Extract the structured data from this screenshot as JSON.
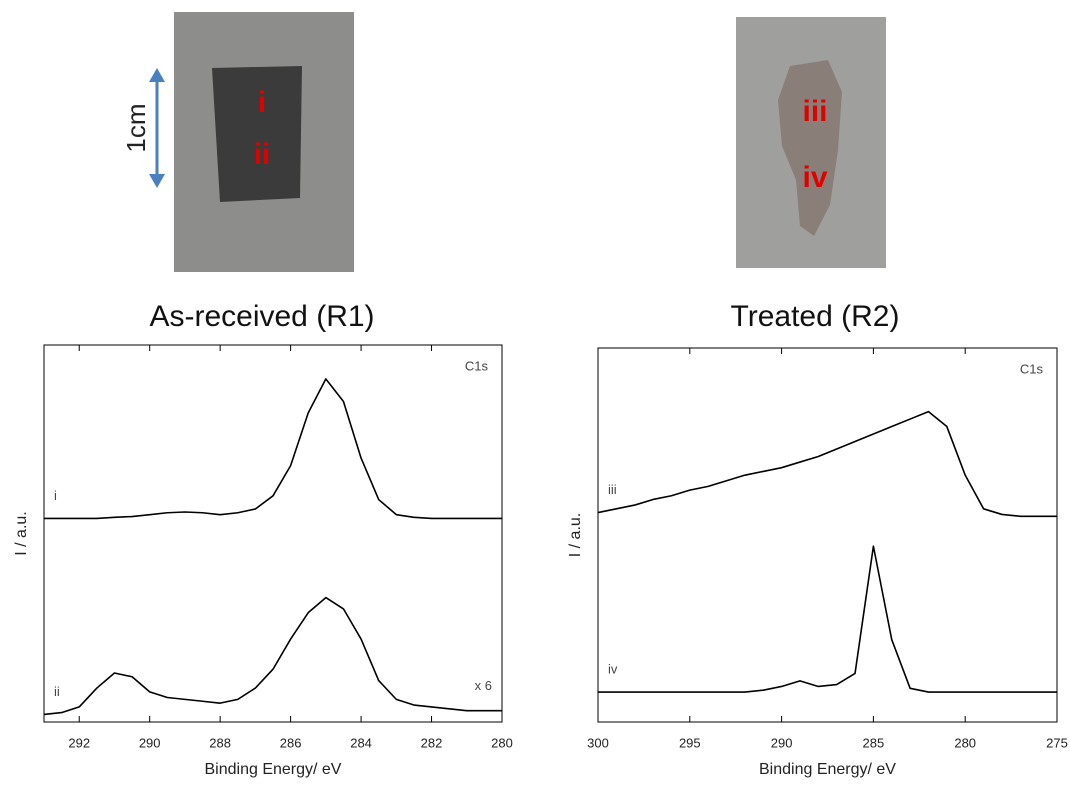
{
  "photos": [
    {
      "labels": [
        "i",
        "ii"
      ],
      "scale_label": "1cm",
      "caption": "As-received (R1)"
    },
    {
      "labels": [
        "iii",
        "iv"
      ],
      "caption": "Treated (R2)"
    }
  ],
  "chart_data": [
    {
      "type": "line",
      "corner_label": "C1s",
      "xlabel": "Binding Energy/ eV",
      "ylabel": "I / a.u.",
      "xlim": [
        293,
        280
      ],
      "xticks": [
        292,
        290,
        288,
        286,
        284,
        282,
        280
      ],
      "ylim": [
        0,
        100
      ],
      "x": [
        293,
        292.5,
        292,
        291.5,
        291,
        290.5,
        290,
        289.5,
        289,
        288.5,
        288,
        287.5,
        287,
        286.5,
        286,
        285.5,
        285,
        284.5,
        284,
        283.5,
        283,
        282.5,
        282,
        281.5,
        281,
        280.5,
        280
      ],
      "series": [
        {
          "name": "i",
          "color": "#000000",
          "values": [
            54,
            54,
            54,
            54,
            54.3,
            54.5,
            55,
            55.5,
            55.7,
            55.5,
            55,
            55.5,
            56.5,
            60,
            68,
            82,
            91,
            85,
            70,
            59,
            55,
            54.3,
            54,
            54,
            54,
            54,
            54
          ]
        },
        {
          "name": "ii",
          "color": "#000000",
          "note": "x 6",
          "values": [
            2,
            2.5,
            4,
            9,
            13,
            12,
            8,
            6.5,
            6,
            5.5,
            5,
            6,
            9,
            14,
            22,
            29,
            33,
            30,
            22,
            11,
            6,
            4.5,
            4,
            3.5,
            3,
            3,
            3
          ]
        }
      ]
    },
    {
      "type": "line",
      "corner_label": "C1s",
      "xlabel": "Binding Energy/ eV",
      "ylabel": "I / a.u.",
      "xlim": [
        300,
        275
      ],
      "xticks": [
        300,
        295,
        290,
        285,
        280,
        275
      ],
      "ylim": [
        0,
        100
      ],
      "x": [
        300,
        299,
        298,
        297,
        296,
        295,
        294,
        293,
        292,
        291,
        290,
        289,
        288,
        287,
        286,
        285,
        284,
        283,
        282,
        281,
        280,
        279,
        278,
        277,
        276,
        275
      ],
      "series": [
        {
          "name": "iii",
          "color": "#000000",
          "values": [
            56,
            57,
            58,
            59.5,
            60.5,
            62,
            63,
            64.5,
            66,
            67,
            68,
            69.5,
            71,
            73,
            75,
            77,
            79,
            81,
            83,
            79,
            66,
            57,
            55.5,
            55,
            55,
            55
          ]
        },
        {
          "name": "iv",
          "color": "#000000",
          "values": [
            8,
            8,
            8,
            8,
            8,
            8,
            8,
            8,
            8,
            8.5,
            9.5,
            11,
            9.5,
            10,
            13,
            47,
            22,
            9,
            8,
            8,
            8,
            8,
            8,
            8,
            8,
            8
          ]
        }
      ]
    }
  ]
}
